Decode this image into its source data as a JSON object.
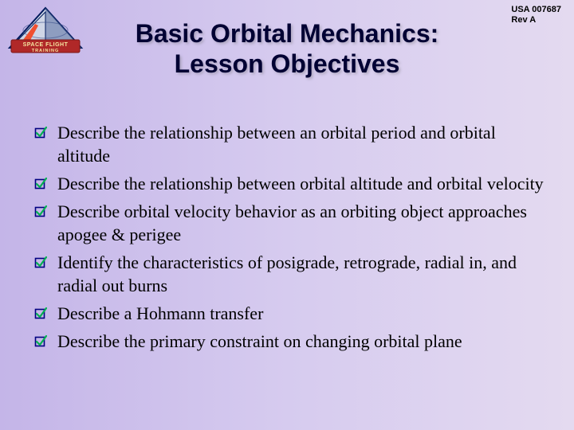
{
  "doc": {
    "id_line1": "USA 007687",
    "id_line2": "Rev A"
  },
  "title": {
    "line1": "Basic Orbital Mechanics:",
    "line2": "Lesson Objectives"
  },
  "logo": {
    "banner_text": "SPACE FLIGHT",
    "banner_sub": "TRAINING"
  },
  "objectives": [
    {
      "text": "Describe the relationship between an orbital period and orbital altitude"
    },
    {
      "text": "Describe the relationship between orbital altitude and orbital velocity"
    },
    {
      "text": "Describe orbital velocity behavior as an orbiting object approaches apogee & perigee"
    },
    {
      "text": "Identify the characteristics of posigrade, retrograde, radial in, and radial out burns"
    },
    {
      "text": "Describe a Hohmann transfer"
    },
    {
      "text": "Describe the primary constraint on changing orbital plane"
    }
  ],
  "style": {
    "bg_gradient": [
      "#c4b5e8",
      "#e4daf0"
    ],
    "title_color": "#000033",
    "title_fontsize": 32,
    "body_fontsize": 22,
    "bullet_box_color": "#000080",
    "bullet_check_color": "#00b050",
    "logo_triangle_fill": "#cfd6e6",
    "logo_triangle_border": "#001a5c",
    "logo_banner_fill": "#b02828",
    "logo_banner_text_color": "#f5e6a0"
  }
}
